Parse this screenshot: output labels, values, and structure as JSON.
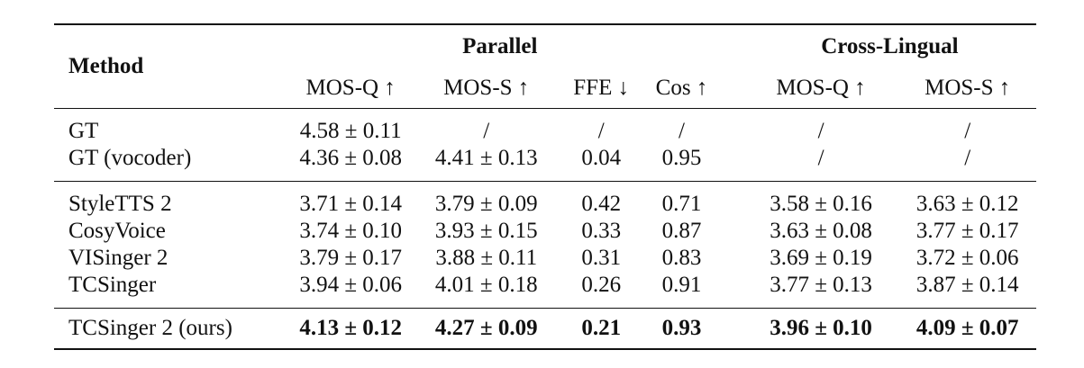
{
  "table": {
    "header": {
      "method": "Method",
      "group_parallel": "Parallel",
      "group_cross": "Cross-Lingual",
      "columns": [
        "MOS-Q ↑",
        "MOS-S ↑",
        "FFE ↓",
        "Cos ↑",
        "MOS-Q ↑",
        "MOS-S ↑"
      ]
    },
    "section1": [
      {
        "method": "GT",
        "cells": [
          "4.58 ± 0.11",
          "/",
          "/",
          "/",
          "/",
          "/"
        ]
      },
      {
        "method": "GT (vocoder)",
        "cells": [
          "4.36 ± 0.08",
          "4.41 ± 0.13",
          "0.04",
          "0.95",
          "/",
          "/"
        ]
      }
    ],
    "section2": [
      {
        "method": "StyleTTS 2",
        "cells": [
          "3.71 ± 0.14",
          "3.79 ± 0.09",
          "0.42",
          "0.71",
          "3.58 ± 0.16",
          "3.63 ± 0.12"
        ]
      },
      {
        "method": "CosyVoice",
        "cells": [
          "3.74 ± 0.10",
          "3.93 ± 0.15",
          "0.33",
          "0.87",
          "3.63 ± 0.08",
          "3.77 ± 0.17"
        ]
      },
      {
        "method": "VISinger 2",
        "cells": [
          "3.79 ± 0.17",
          "3.88 ± 0.11",
          "0.31",
          "0.83",
          "3.69 ± 0.19",
          "3.72 ± 0.06"
        ]
      },
      {
        "method": "TCSinger",
        "cells": [
          "3.94 ± 0.06",
          "4.01 ± 0.18",
          "0.26",
          "0.91",
          "3.77 ± 0.13",
          "3.87 ± 0.14"
        ]
      }
    ],
    "final": {
      "method": "TCSinger 2 (ours)",
      "cells": [
        "4.13 ± 0.12",
        "4.27 ± 0.09",
        "0.21",
        "0.93",
        "3.96 ± 0.10",
        "4.09 ± 0.07"
      ]
    }
  }
}
